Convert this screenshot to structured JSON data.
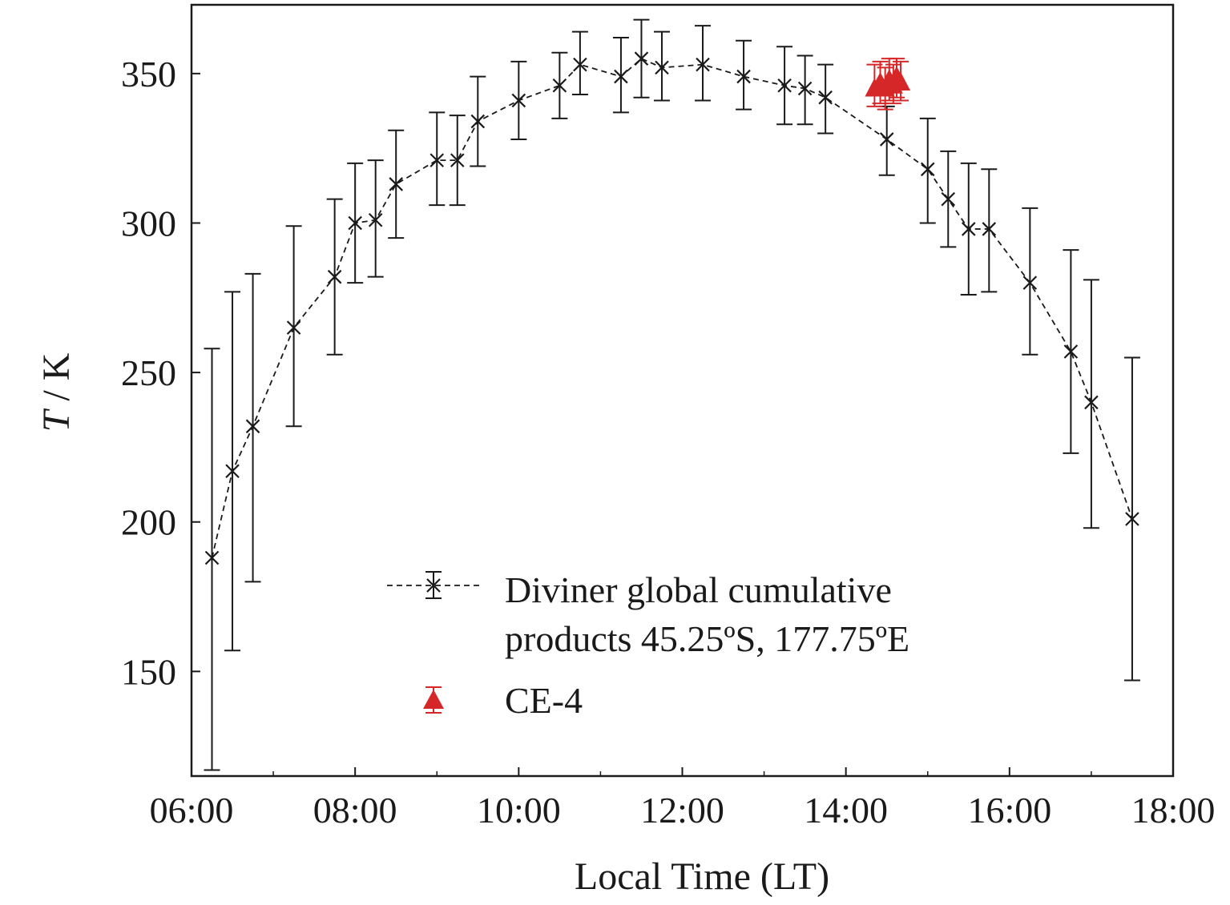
{
  "chart_data": {
    "type": "scatter",
    "xlabel": "Local Time (LT)",
    "ylabel_italic": "T",
    "ylabel_rest": " / K",
    "xlim": [
      6.0,
      18.0
    ],
    "ylim": [
      115,
      373
    ],
    "x_ticks": [
      {
        "value": 6,
        "label": "06:00"
      },
      {
        "value": 8,
        "label": "08:00"
      },
      {
        "value": 10,
        "label": "10:00"
      },
      {
        "value": 12,
        "label": "12:00"
      },
      {
        "value": 14,
        "label": "14:00"
      },
      {
        "value": 16,
        "label": "16:00"
      },
      {
        "value": 18,
        "label": "18:00"
      }
    ],
    "y_ticks": [
      {
        "value": 150,
        "label": "150"
      },
      {
        "value": 200,
        "label": "200"
      },
      {
        "value": 250,
        "label": "250"
      },
      {
        "value": 300,
        "label": "300"
      },
      {
        "value": 350,
        "label": "350"
      }
    ],
    "grid": false,
    "legend_position": "lower-center",
    "series": [
      {
        "name": "Diviner global cumulative products 45.25ºS, 177.75ºE",
        "legend_line1": "Diviner global cumulative",
        "legend_line2": "products 45.25ºS, 177.75ºE",
        "marker": "x",
        "line": "dashed",
        "color": "#1a1a1a",
        "points": [
          {
            "x": 6.25,
            "y": 188,
            "lo": 117,
            "hi": 258
          },
          {
            "x": 6.5,
            "y": 217,
            "lo": 157,
            "hi": 277
          },
          {
            "x": 6.75,
            "y": 232,
            "lo": 180,
            "hi": 283
          },
          {
            "x": 7.25,
            "y": 265,
            "lo": 232,
            "hi": 299
          },
          {
            "x": 7.75,
            "y": 282,
            "lo": 256,
            "hi": 308
          },
          {
            "x": 8.0,
            "y": 300,
            "lo": 280,
            "hi": 320
          },
          {
            "x": 8.25,
            "y": 301,
            "lo": 282,
            "hi": 321
          },
          {
            "x": 8.5,
            "y": 313,
            "lo": 295,
            "hi": 331
          },
          {
            "x": 9.0,
            "y": 321,
            "lo": 306,
            "hi": 337
          },
          {
            "x": 9.25,
            "y": 321,
            "lo": 306,
            "hi": 336
          },
          {
            "x": 9.5,
            "y": 334,
            "lo": 319,
            "hi": 349
          },
          {
            "x": 10.0,
            "y": 341,
            "lo": 328,
            "hi": 354
          },
          {
            "x": 10.5,
            "y": 346,
            "lo": 335,
            "hi": 357
          },
          {
            "x": 10.75,
            "y": 353,
            "lo": 343,
            "hi": 364
          },
          {
            "x": 11.25,
            "y": 349,
            "lo": 337,
            "hi": 362
          },
          {
            "x": 11.5,
            "y": 355,
            "lo": 342,
            "hi": 368
          },
          {
            "x": 11.75,
            "y": 352,
            "lo": 341,
            "hi": 364
          },
          {
            "x": 12.25,
            "y": 353,
            "lo": 341,
            "hi": 366
          },
          {
            "x": 12.75,
            "y": 349,
            "lo": 338,
            "hi": 361
          },
          {
            "x": 13.25,
            "y": 346,
            "lo": 333,
            "hi": 359
          },
          {
            "x": 13.5,
            "y": 345,
            "lo": 333,
            "hi": 356
          },
          {
            "x": 13.75,
            "y": 342,
            "lo": 330,
            "hi": 353
          },
          {
            "x": 14.5,
            "y": 328,
            "lo": 316,
            "hi": 339
          },
          {
            "x": 15.0,
            "y": 318,
            "lo": 300,
            "hi": 335
          },
          {
            "x": 15.25,
            "y": 308,
            "lo": 292,
            "hi": 324
          },
          {
            "x": 15.5,
            "y": 298,
            "lo": 276,
            "hi": 320
          },
          {
            "x": 15.75,
            "y": 298,
            "lo": 277,
            "hi": 318
          },
          {
            "x": 16.25,
            "y": 280,
            "lo": 256,
            "hi": 305
          },
          {
            "x": 16.75,
            "y": 257,
            "lo": 223,
            "hi": 291
          },
          {
            "x": 17.0,
            "y": 240,
            "lo": 198,
            "hi": 281
          },
          {
            "x": 17.5,
            "y": 201,
            "lo": 147,
            "hi": 255
          }
        ]
      },
      {
        "name": "CE-4",
        "marker": "triangle",
        "line": "none",
        "color": "#d62728",
        "points": [
          {
            "x": 14.35,
            "y": 345,
            "lo": 339,
            "hi": 353
          },
          {
            "x": 14.42,
            "y": 347,
            "lo": 340,
            "hi": 354
          },
          {
            "x": 14.48,
            "y": 345,
            "lo": 338,
            "hi": 352
          },
          {
            "x": 14.53,
            "y": 348,
            "lo": 341,
            "hi": 355
          },
          {
            "x": 14.58,
            "y": 346,
            "lo": 340,
            "hi": 353
          },
          {
            "x": 14.62,
            "y": 349,
            "lo": 342,
            "hi": 355
          },
          {
            "x": 14.67,
            "y": 347,
            "lo": 341,
            "hi": 354
          }
        ]
      }
    ]
  }
}
